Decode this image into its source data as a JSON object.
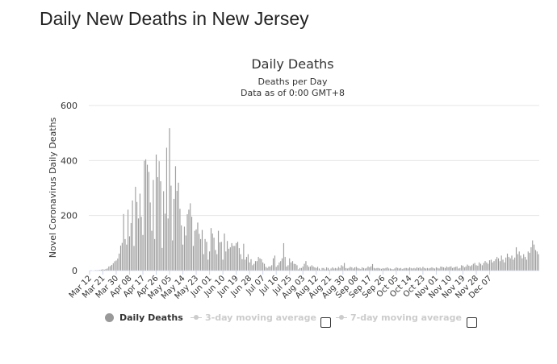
{
  "page": {
    "heading": "Daily New Deaths in New Jersey"
  },
  "chart_data": {
    "type": "bar",
    "title": "Daily Deaths",
    "subtitle": "Deaths per Day",
    "subtitle2": "Data as of 0:00 GMT+8",
    "ylabel": "Novel Coronavirus Daily Deaths",
    "xlabel": "",
    "ylim": [
      0,
      600
    ],
    "yticks": [
      0,
      200,
      400,
      600
    ],
    "xticks": [
      "Mar 12",
      "Mar 21",
      "Mar 30",
      "Apr 08",
      "Apr 17",
      "Apr 26",
      "May 05",
      "May 14",
      "May 23",
      "Jun 01",
      "Jun 10",
      "Jun 19",
      "Jun 28",
      "Jul 07",
      "Jul 16",
      "Jul 25",
      "Aug 03",
      "Aug 12",
      "Aug 21",
      "Aug 30",
      "Sep 08",
      "Sep 17",
      "Sep 26",
      "Oct 05",
      "Oct 14",
      "Oct 23",
      "Nov 01",
      "Nov 10",
      "Nov 19",
      "Nov 28",
      "Dec 07"
    ],
    "start_date": "Mar 12",
    "series": [
      {
        "name": "Daily Deaths",
        "color": "#999999",
        "values": [
          1,
          0,
          1,
          1,
          2,
          0,
          2,
          3,
          4,
          5,
          4,
          6,
          8,
          15,
          17,
          21,
          27,
          34,
          37,
          44,
          62,
          91,
          101,
          206,
          115,
          95,
          222,
          125,
          173,
          255,
          90,
          305,
          250,
          190,
          280,
          196,
          130,
          400,
          405,
          385,
          359,
          248,
          145,
          330,
          115,
          422,
          340,
          398,
          325,
          83,
          289,
          207,
          447,
          190,
          518,
          309,
          110,
          261,
          380,
          290,
          320,
          225,
          165,
          95,
          160,
          128,
          205,
          222,
          245,
          196,
          90,
          145,
          150,
          175,
          134,
          115,
          148,
          60,
          115,
          105,
          40,
          70,
          155,
          135,
          120,
          75,
          60,
          145,
          103,
          105,
          40,
          135,
          70,
          108,
          80,
          85,
          100,
          90,
          90,
          100,
          105,
          82,
          60,
          42,
          98,
          40,
          50,
          60,
          30,
          42,
          20,
          25,
          35,
          35,
          50,
          45,
          42,
          30,
          25,
          14,
          10,
          15,
          15,
          20,
          45,
          55,
          14,
          20,
          30,
          35,
          45,
          100,
          50,
          15,
          20,
          45,
          30,
          35,
          25,
          24,
          20,
          5,
          10,
          10,
          15,
          25,
          35,
          20,
          14,
          15,
          20,
          15,
          12,
          10,
          14,
          8,
          3,
          10,
          10,
          5,
          12,
          10,
          4,
          8,
          12,
          8,
          10,
          8,
          14,
          10,
          20,
          16,
          28,
          10,
          8,
          10,
          14,
          12,
          8,
          12,
          14,
          10,
          8,
          6,
          12,
          10,
          8,
          10,
          15,
          12,
          16,
          24,
          10,
          8,
          10,
          10,
          8,
          7,
          9,
          8,
          10,
          12,
          8,
          8,
          6,
          5,
          8,
          12,
          10,
          8,
          10,
          6,
          8,
          10,
          10,
          8,
          12,
          10,
          8,
          10,
          8,
          12,
          10,
          12,
          8,
          14,
          10,
          8,
          10,
          8,
          10,
          12,
          10,
          8,
          12,
          10,
          8,
          15,
          14,
          12,
          10,
          15,
          12,
          14,
          16,
          10,
          12,
          14,
          15,
          8,
          10,
          20,
          18,
          12,
          15,
          22,
          18,
          16,
          20,
          25,
          28,
          20,
          18,
          30,
          25,
          20,
          28,
          35,
          30,
          25,
          38,
          40,
          30,
          35,
          42,
          50,
          45,
          35,
          55,
          40,
          30,
          48,
          62,
          50,
          45,
          55,
          40,
          48,
          85,
          60,
          70,
          55,
          45,
          60,
          50,
          40,
          70,
          65,
          85,
          110,
          95,
          75,
          70,
          60
        ]
      },
      {
        "name": "3-day moving average",
        "visible": false
      },
      {
        "name": "7-day moving average",
        "visible": false
      }
    ],
    "legend": [
      "Daily Deaths",
      "3-day moving average",
      "7-day moving average"
    ]
  },
  "colors": {
    "bar": "#999999",
    "grid": "#e6e6e6",
    "axis": "#ccd6eb",
    "muted": "#cccccc"
  }
}
